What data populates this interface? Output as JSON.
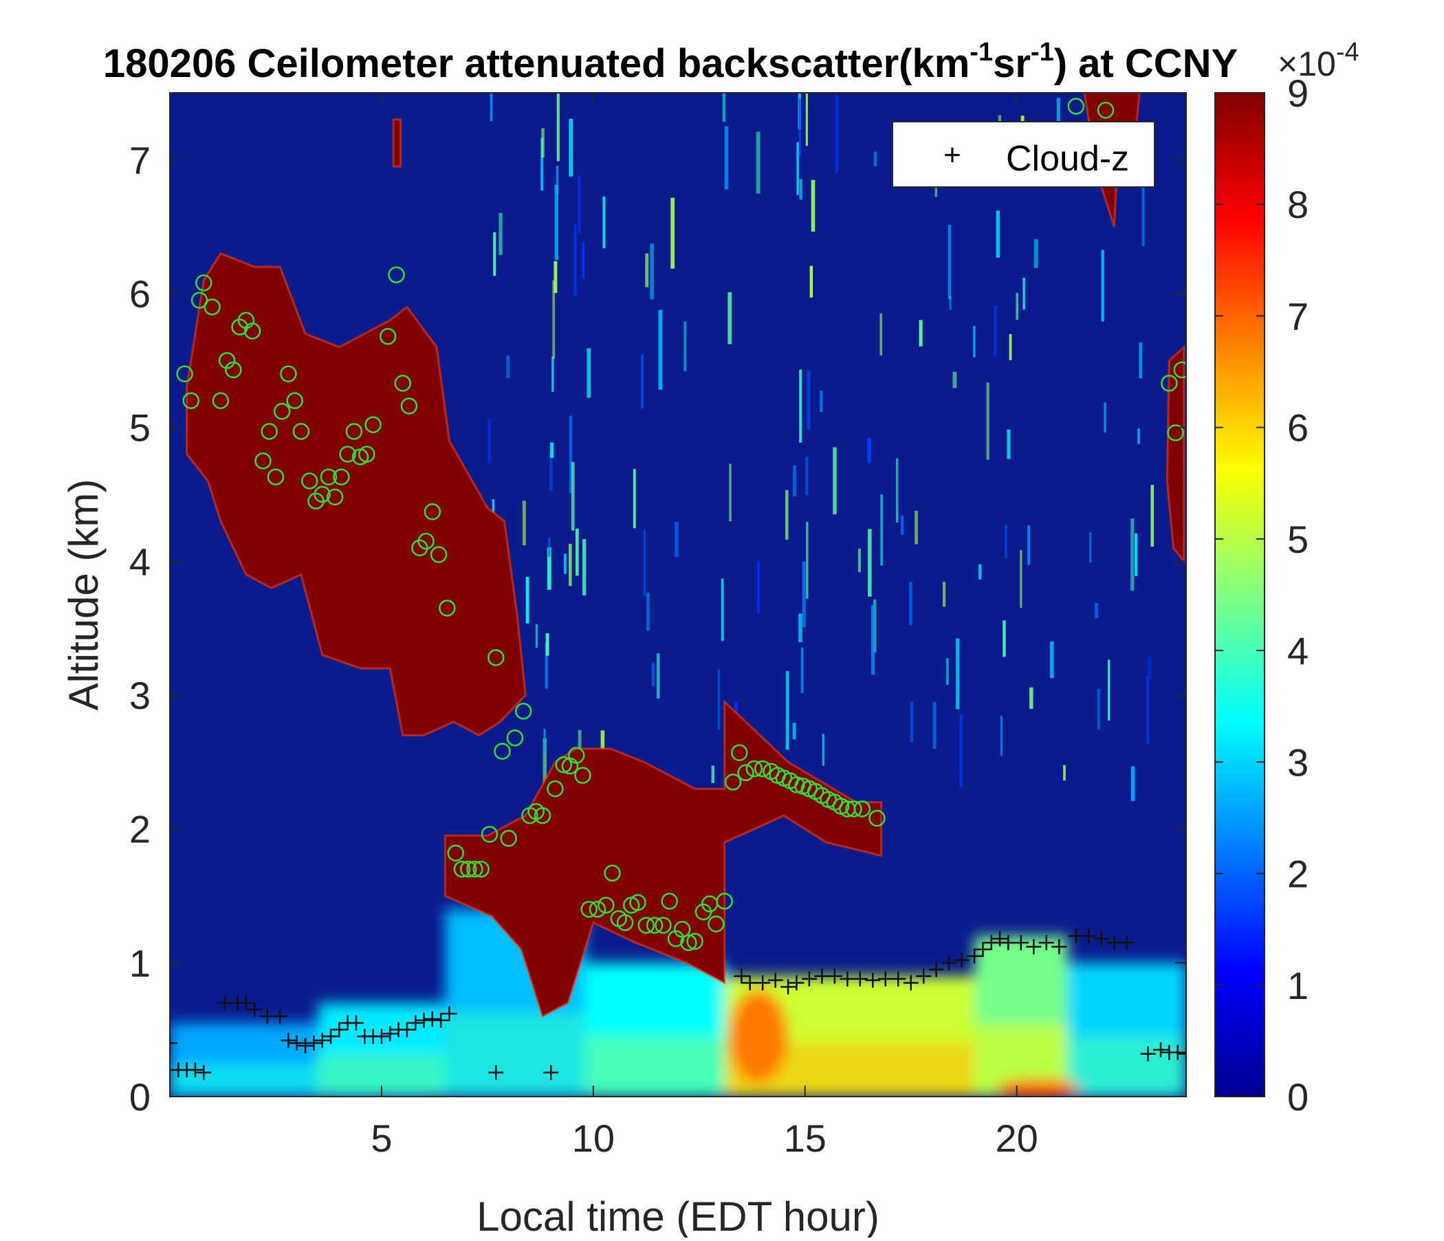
{
  "chart_data": {
    "type": "heatmap",
    "title_parts": {
      "prefix": "180206 Ceilometer attenuated backscatter(km",
      "sup1": "-1",
      "mid": "sr",
      "sup2": "-1",
      "suffix": ") at CCNY"
    },
    "xlabel": "Local time (EDT hour)",
    "ylabel": "Altitude (km)",
    "xlim": [
      0,
      24
    ],
    "ylim": [
      0,
      7.5
    ],
    "x_ticks": [
      5,
      10,
      15,
      20
    ],
    "y_ticks": [
      0,
      1,
      2,
      3,
      4,
      5,
      6,
      7
    ],
    "grid": false,
    "colormap": "jet",
    "colorbar": {
      "min": 0,
      "max": 9,
      "ticks": [
        0,
        1,
        2,
        3,
        4,
        5,
        6,
        7,
        8,
        9
      ],
      "exponent_label": "×10",
      "exponent_sup": "-4",
      "stops": [
        "#00008f",
        "#0000ff",
        "#0080ff",
        "#00ffff",
        "#80ff80",
        "#ffff00",
        "#ff8000",
        "#ff0000",
        "#800000"
      ]
    },
    "legend": {
      "position": "top-right",
      "entries": [
        {
          "marker": "+",
          "label": "Cloud-z"
        }
      ]
    },
    "background_color": "#0a1c8c",
    "saturated_color": "#800000",
    "circle_color": "#33dd33",
    "plus_color": "#111111",
    "cloud_regions": [
      {
        "name": "high-cloud-early",
        "polygon": [
          [
            0.4,
            5.3
          ],
          [
            0.8,
            6.1
          ],
          [
            1.2,
            6.3
          ],
          [
            2.0,
            6.2
          ],
          [
            2.6,
            6.2
          ],
          [
            3.2,
            5.7
          ],
          [
            4.0,
            5.6
          ],
          [
            5.2,
            5.8
          ],
          [
            5.6,
            5.9
          ],
          [
            6.3,
            5.6
          ],
          [
            6.6,
            4.9
          ],
          [
            7.5,
            4.4
          ],
          [
            7.9,
            4.3
          ],
          [
            8.2,
            3.6
          ],
          [
            8.4,
            3.0
          ],
          [
            7.8,
            2.8
          ],
          [
            7.3,
            2.7
          ],
          [
            6.7,
            2.8
          ],
          [
            6.0,
            2.7
          ],
          [
            5.5,
            2.7
          ],
          [
            5.2,
            3.2
          ],
          [
            4.5,
            3.2
          ],
          [
            3.6,
            3.3
          ],
          [
            3.1,
            3.9
          ],
          [
            2.4,
            3.8
          ],
          [
            1.8,
            3.9
          ],
          [
            1.2,
            4.3
          ],
          [
            0.9,
            4.6
          ],
          [
            0.4,
            4.8
          ]
        ]
      },
      {
        "name": "descending-layer",
        "polygon": [
          [
            6.5,
            1.5
          ],
          [
            6.5,
            1.95
          ],
          [
            7.5,
            1.95
          ],
          [
            8.4,
            2.1
          ],
          [
            9.1,
            2.5
          ],
          [
            9.6,
            2.6
          ],
          [
            10.4,
            2.6
          ],
          [
            11.2,
            2.5
          ],
          [
            12.4,
            2.3
          ],
          [
            13.1,
            2.3
          ],
          [
            13.1,
            2.95
          ],
          [
            14.6,
            2.5
          ],
          [
            16.2,
            2.2
          ],
          [
            16.8,
            2.2
          ],
          [
            16.8,
            1.8
          ],
          [
            15.5,
            1.9
          ],
          [
            14.5,
            2.1
          ],
          [
            13.8,
            2.0
          ],
          [
            13.1,
            1.9
          ],
          [
            13.1,
            0.85
          ],
          [
            12.2,
            1.0
          ],
          [
            11.0,
            1.15
          ],
          [
            10.0,
            1.3
          ],
          [
            9.4,
            0.7
          ],
          [
            8.8,
            0.6
          ],
          [
            8.3,
            1.1
          ],
          [
            7.6,
            1.35
          ]
        ]
      },
      {
        "name": "high-cloud-late-top",
        "polygon": [
          [
            21.6,
            7.5
          ],
          [
            22.9,
            7.5
          ],
          [
            22.8,
            7.2
          ],
          [
            22.4,
            7.1
          ],
          [
            22.3,
            6.5
          ],
          [
            22.0,
            6.8
          ],
          [
            21.8,
            7.1
          ]
        ]
      },
      {
        "name": "high-cloud-late-right",
        "polygon": [
          [
            23.6,
            5.5
          ],
          [
            23.95,
            5.6
          ],
          [
            23.95,
            4.0
          ],
          [
            23.7,
            4.1
          ],
          [
            23.55,
            4.6
          ]
        ]
      },
      {
        "name": "streak-5.3h",
        "polygon": [
          [
            5.28,
            7.3
          ],
          [
            5.45,
            7.3
          ],
          [
            5.45,
            6.95
          ],
          [
            5.28,
            6.95
          ]
        ]
      }
    ],
    "boundary_layer": [
      {
        "x0": 0.0,
        "x1": 3.5,
        "top": 0.55,
        "value": 2.6
      },
      {
        "x0": 3.5,
        "x1": 6.5,
        "top": 0.7,
        "value": 3.2
      },
      {
        "x0": 6.5,
        "x1": 9.8,
        "top": 1.4,
        "value": 2.8
      },
      {
        "x0": 9.8,
        "x1": 13.1,
        "top": 1.0,
        "value": 3.4
      },
      {
        "x0": 13.1,
        "x1": 19.0,
        "top": 0.9,
        "value": 5.2
      },
      {
        "x0": 19.0,
        "x1": 21.2,
        "top": 1.2,
        "value": 4.4
      },
      {
        "x0": 21.2,
        "x1": 24.0,
        "top": 1.0,
        "value": 3.0
      }
    ],
    "hot_spots": [
      {
        "x": 13.9,
        "y": 0.45,
        "rx": 0.7,
        "ry": 0.35,
        "value": 6.8
      },
      {
        "x": 20.5,
        "y": 0.06,
        "rx": 1.0,
        "ry": 0.07,
        "value": 7.0
      }
    ],
    "series": [
      {
        "name": "Cloud-z",
        "marker": "+",
        "points": [
          [
            0.0,
            0.4
          ],
          [
            0.2,
            0.2
          ],
          [
            0.4,
            0.2
          ],
          [
            0.6,
            0.2
          ],
          [
            0.8,
            0.18
          ],
          [
            1.3,
            0.7
          ],
          [
            1.6,
            0.7
          ],
          [
            1.8,
            0.7
          ],
          [
            2.0,
            0.65
          ],
          [
            2.3,
            0.6
          ],
          [
            2.6,
            0.6
          ],
          [
            2.8,
            0.42
          ],
          [
            3.0,
            0.4
          ],
          [
            3.2,
            0.38
          ],
          [
            3.4,
            0.4
          ],
          [
            3.6,
            0.42
          ],
          [
            3.8,
            0.45
          ],
          [
            4.0,
            0.5
          ],
          [
            4.2,
            0.55
          ],
          [
            4.4,
            0.55
          ],
          [
            4.6,
            0.45
          ],
          [
            4.8,
            0.45
          ],
          [
            5.0,
            0.45
          ],
          [
            5.2,
            0.47
          ],
          [
            5.4,
            0.5
          ],
          [
            5.6,
            0.5
          ],
          [
            5.8,
            0.55
          ],
          [
            6.0,
            0.57
          ],
          [
            6.2,
            0.58
          ],
          [
            6.4,
            0.57
          ],
          [
            6.6,
            0.62
          ],
          [
            7.7,
            0.18
          ],
          [
            9.0,
            0.18
          ],
          [
            13.5,
            0.9
          ],
          [
            13.7,
            0.85
          ],
          [
            14.0,
            0.85
          ],
          [
            14.3,
            0.87
          ],
          [
            14.6,
            0.82
          ],
          [
            14.8,
            0.85
          ],
          [
            15.1,
            0.88
          ],
          [
            15.4,
            0.9
          ],
          [
            15.7,
            0.9
          ],
          [
            16.0,
            0.88
          ],
          [
            16.3,
            0.88
          ],
          [
            16.6,
            0.87
          ],
          [
            16.9,
            0.88
          ],
          [
            17.2,
            0.88
          ],
          [
            17.5,
            0.85
          ],
          [
            17.8,
            0.9
          ],
          [
            18.1,
            0.95
          ],
          [
            18.4,
            1.0
          ],
          [
            18.7,
            1.02
          ],
          [
            19.0,
            1.05
          ],
          [
            19.2,
            1.1
          ],
          [
            19.4,
            1.15
          ],
          [
            19.6,
            1.18
          ],
          [
            19.8,
            1.15
          ],
          [
            20.1,
            1.15
          ],
          [
            20.4,
            1.12
          ],
          [
            20.7,
            1.15
          ],
          [
            21.0,
            1.12
          ],
          [
            21.4,
            1.2
          ],
          [
            21.7,
            1.2
          ],
          [
            22.0,
            1.18
          ],
          [
            22.3,
            1.15
          ],
          [
            22.6,
            1.15
          ],
          [
            23.1,
            0.32
          ],
          [
            23.4,
            0.35
          ],
          [
            23.6,
            0.33
          ],
          [
            23.8,
            0.33
          ],
          [
            24.0,
            0.32
          ]
        ]
      },
      {
        "marker": "o",
        "points": [
          [
            0.35,
            5.4
          ],
          [
            0.5,
            5.2
          ],
          [
            0.7,
            5.95
          ],
          [
            0.8,
            6.08
          ],
          [
            1.0,
            5.9
          ],
          [
            1.2,
            5.2
          ],
          [
            1.35,
            5.5
          ],
          [
            1.5,
            5.43
          ],
          [
            1.65,
            5.75
          ],
          [
            1.8,
            5.8
          ],
          [
            1.95,
            5.72
          ],
          [
            2.2,
            4.75
          ],
          [
            2.35,
            4.97
          ],
          [
            2.5,
            4.63
          ],
          [
            2.65,
            5.12
          ],
          [
            2.8,
            5.4
          ],
          [
            2.95,
            5.2
          ],
          [
            3.1,
            4.97
          ],
          [
            3.3,
            4.6
          ],
          [
            3.45,
            4.45
          ],
          [
            3.6,
            4.5
          ],
          [
            3.75,
            4.63
          ],
          [
            3.9,
            4.48
          ],
          [
            4.05,
            4.63
          ],
          [
            4.2,
            4.8
          ],
          [
            4.35,
            4.97
          ],
          [
            4.5,
            4.78
          ],
          [
            4.65,
            4.8
          ],
          [
            4.8,
            5.02
          ],
          [
            5.15,
            5.68
          ],
          [
            5.35,
            6.14
          ],
          [
            5.5,
            5.33
          ],
          [
            5.65,
            5.16
          ],
          [
            5.9,
            4.1
          ],
          [
            6.05,
            4.15
          ],
          [
            6.2,
            4.37
          ],
          [
            6.35,
            4.05
          ],
          [
            6.55,
            3.65
          ],
          [
            6.75,
            1.82
          ],
          [
            6.9,
            1.7
          ],
          [
            7.05,
            1.7
          ],
          [
            7.2,
            1.7
          ],
          [
            7.35,
            1.7
          ],
          [
            7.55,
            1.96
          ],
          [
            7.7,
            3.28
          ],
          [
            7.85,
            2.58
          ],
          [
            8.0,
            1.93
          ],
          [
            8.15,
            2.68
          ],
          [
            8.35,
            2.88
          ],
          [
            8.5,
            2.1
          ],
          [
            8.65,
            2.13
          ],
          [
            8.8,
            2.1
          ],
          [
            9.1,
            2.3
          ],
          [
            9.3,
            2.48
          ],
          [
            9.45,
            2.47
          ],
          [
            9.6,
            2.55
          ],
          [
            9.75,
            2.4
          ],
          [
            9.9,
            1.4
          ],
          [
            10.1,
            1.4
          ],
          [
            10.3,
            1.43
          ],
          [
            10.45,
            1.67
          ],
          [
            10.6,
            1.33
          ],
          [
            10.75,
            1.3
          ],
          [
            10.9,
            1.43
          ],
          [
            11.05,
            1.45
          ],
          [
            11.25,
            1.28
          ],
          [
            11.45,
            1.28
          ],
          [
            11.65,
            1.28
          ],
          [
            11.8,
            1.46
          ],
          [
            11.95,
            1.18
          ],
          [
            12.1,
            1.25
          ],
          [
            12.25,
            1.15
          ],
          [
            12.4,
            1.16
          ],
          [
            12.6,
            1.38
          ],
          [
            12.75,
            1.44
          ],
          [
            12.9,
            1.29
          ],
          [
            13.1,
            1.46
          ],
          [
            13.3,
            2.35
          ],
          [
            13.45,
            2.57
          ],
          [
            13.6,
            2.42
          ],
          [
            13.8,
            2.45
          ],
          [
            14.0,
            2.45
          ],
          [
            14.2,
            2.43
          ],
          [
            14.35,
            2.4
          ],
          [
            14.5,
            2.38
          ],
          [
            14.65,
            2.36
          ],
          [
            14.8,
            2.33
          ],
          [
            14.95,
            2.32
          ],
          [
            15.1,
            2.3
          ],
          [
            15.25,
            2.28
          ],
          [
            15.4,
            2.25
          ],
          [
            15.55,
            2.22
          ],
          [
            15.7,
            2.2
          ],
          [
            15.85,
            2.17
          ],
          [
            16.0,
            2.15
          ],
          [
            16.15,
            2.15
          ],
          [
            16.35,
            2.15
          ],
          [
            16.7,
            2.08
          ],
          [
            21.4,
            7.4
          ],
          [
            22.1,
            7.37
          ],
          [
            23.6,
            5.33
          ],
          [
            23.75,
            4.96
          ],
          [
            23.9,
            5.43
          ]
        ]
      }
    ]
  }
}
